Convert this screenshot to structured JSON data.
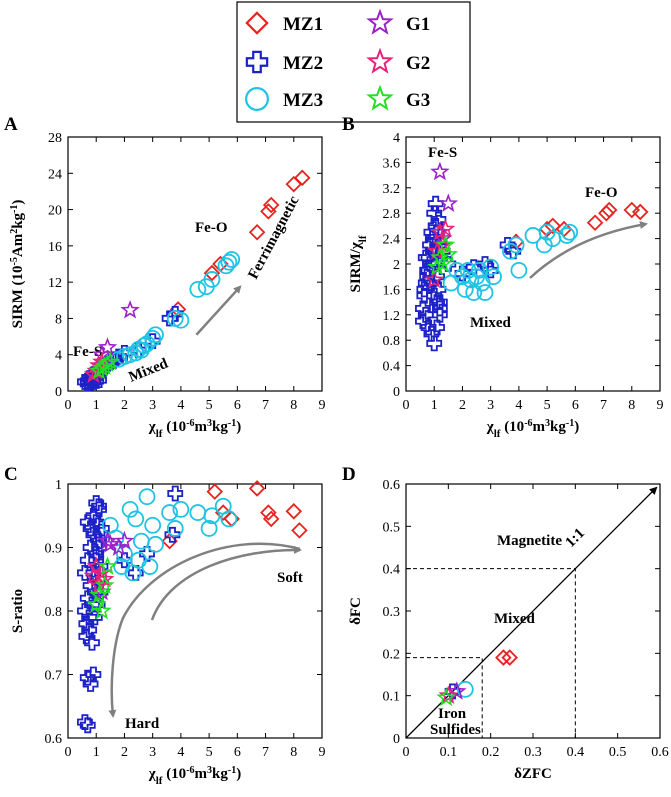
{
  "legend": [
    {
      "label": "MZ1",
      "marker": "diamond",
      "color": "#e8231f"
    },
    {
      "label": "MZ2",
      "marker": "cross",
      "color": "#1d22c8"
    },
    {
      "label": "MZ3",
      "marker": "circle",
      "color": "#1fc3e3"
    },
    {
      "label": "G1",
      "marker": "star",
      "color": "#9a22c8"
    },
    {
      "label": "G2",
      "marker": "star",
      "color": "#e8227a"
    },
    {
      "label": "G3",
      "marker": "star",
      "color": "#22e022"
    }
  ],
  "colors": {
    "MZ1": "#e8231f",
    "MZ2": "#1d22c8",
    "MZ3": "#1fc3e3",
    "G1": "#9a22c8",
    "G2": "#e8227a",
    "G3": "#22e022",
    "arrow": "#808080"
  },
  "chart_data": [
    {
      "panel": "A",
      "type": "scatter",
      "xlabel": "χlf (10-6m3kg-1)",
      "ylabel": "SIRM (10-5Am2kg-1)",
      "xlim": [
        0,
        9
      ],
      "ylim": [
        0,
        28
      ],
      "xticks": [
        "0",
        "1",
        "2",
        "3",
        "4",
        "5",
        "6",
        "7",
        "8",
        "9"
      ],
      "yticks": [
        "0",
        "4",
        "8",
        "12",
        "16",
        "20",
        "24",
        "28"
      ],
      "annotations": [
        "Fe-S",
        "Mixed",
        "Fe-O",
        "Ferrimagnetic"
      ],
      "series": [
        {
          "name": "MZ1",
          "x": [
            3.9,
            5.1,
            5.4,
            6.7,
            7.1,
            7.2,
            8.0,
            8.3
          ],
          "y": [
            9.0,
            13.0,
            14.0,
            17.5,
            19.8,
            20.5,
            22.8,
            23.5
          ]
        },
        {
          "name": "MZ2",
          "x": [
            0.6,
            0.7,
            0.8,
            0.9,
            0.95,
            1.0,
            1.05,
            1.1,
            1.15,
            0.7,
            0.8,
            0.9,
            1.0,
            1.1,
            0.75,
            0.85,
            0.95,
            1.05,
            1.2,
            1.3,
            1.4,
            1.5,
            1.6,
            1.7,
            1.8,
            2.0,
            2.5,
            3.0,
            3.6,
            3.8
          ],
          "y": [
            1.0,
            1.1,
            1.2,
            1.3,
            1.5,
            1.6,
            1.8,
            2.0,
            2.2,
            0.8,
            0.9,
            1.0,
            1.1,
            1.2,
            1.4,
            1.6,
            1.9,
            2.3,
            2.5,
            2.7,
            3.0,
            3.2,
            3.3,
            3.5,
            3.8,
            4.2,
            4.5,
            5.5,
            8.0,
            8.5
          ]
        },
        {
          "name": "MZ3",
          "x": [
            1.8,
            2.0,
            2.2,
            2.4,
            2.5,
            2.6,
            2.7,
            2.8,
            3.0,
            3.1,
            3.8,
            4.0,
            4.6,
            4.9,
            5.1,
            5.6,
            5.7,
            5.8
          ],
          "y": [
            3.5,
            3.8,
            4.0,
            4.2,
            4.6,
            4.5,
            5.0,
            5.2,
            5.8,
            6.2,
            8.0,
            7.8,
            11.2,
            11.5,
            12.3,
            13.8,
            14.2,
            14.5
          ]
        },
        {
          "name": "G1",
          "x": [
            1.2,
            1.4,
            2.2
          ],
          "y": [
            4.0,
            4.8,
            8.9
          ]
        },
        {
          "name": "G2",
          "x": [
            0.9,
            1.0,
            1.1,
            1.2
          ],
          "y": [
            1.8,
            2.2,
            2.8,
            3.2
          ]
        },
        {
          "name": "G3",
          "x": [
            1.1,
            1.2,
            1.3,
            1.4,
            1.5
          ],
          "y": [
            2.2,
            2.5,
            2.7,
            3.0,
            3.2
          ]
        }
      ]
    },
    {
      "panel": "B",
      "type": "scatter",
      "xlabel": "χlf (10-6m3kg-1)",
      "ylabel": "SIRM/χlf",
      "xlim": [
        0,
        9
      ],
      "ylim": [
        0,
        4
      ],
      "xticks": [
        "0",
        "1",
        "2",
        "3",
        "4",
        "5",
        "6",
        "7",
        "8",
        "9"
      ],
      "yticks": [
        "0",
        "0.4",
        "0.8",
        "1.2",
        "1.6",
        "2",
        "2.4",
        "2.8",
        "3.2",
        "3.6",
        "4"
      ],
      "annotations": [
        "Fe-S",
        "Fe-O",
        "Mixed"
      ],
      "series": [
        {
          "name": "MZ1",
          "x": [
            3.9,
            5.0,
            5.2,
            5.6,
            6.7,
            7.1,
            7.2,
            8.0,
            8.3
          ],
          "y": [
            2.35,
            2.55,
            2.6,
            2.55,
            2.65,
            2.8,
            2.85,
            2.85,
            2.82
          ]
        },
        {
          "name": "MZ2",
          "x": [
            0.6,
            0.65,
            0.7,
            0.75,
            0.8,
            0.85,
            0.9,
            0.95,
            1.0,
            1.05,
            1.1,
            1.15,
            1.2,
            0.6,
            0.7,
            0.8,
            0.9,
            1.0,
            1.1,
            1.2,
            0.65,
            0.75,
            0.85,
            0.95,
            1.05,
            1.15,
            0.7,
            0.8,
            0.9,
            1.0,
            1.1,
            1.2,
            1.0,
            1.05,
            1.1,
            1.15,
            1.2,
            1.3,
            1.5,
            2.0,
            2.4,
            2.8,
            3.0,
            3.6,
            3.8
          ],
          "y": [
            1.3,
            1.5,
            1.7,
            1.9,
            2.1,
            2.3,
            2.5,
            2.4,
            2.2,
            2.0,
            1.8,
            1.6,
            1.4,
            1.1,
            1.2,
            1.0,
            0.9,
            0.75,
            1.0,
            1.3,
            1.6,
            1.8,
            2.0,
            2.2,
            2.6,
            2.7,
            2.1,
            1.9,
            1.7,
            1.5,
            1.4,
            1.2,
            2.8,
            2.95,
            2.5,
            2.3,
            2.1,
            2.2,
            2.0,
            1.85,
            1.95,
            2.0,
            1.9,
            2.3,
            2.2
          ]
        },
        {
          "name": "MZ3",
          "x": [
            1.6,
            1.8,
            2.0,
            2.1,
            2.2,
            2.3,
            2.4,
            2.5,
            2.6,
            2.7,
            2.8,
            3.0,
            3.1,
            3.7,
            3.9,
            4.0,
            4.5,
            4.9,
            5.0,
            5.2,
            5.7,
            5.8
          ],
          "y": [
            1.7,
            1.9,
            1.8,
            1.6,
            1.9,
            1.75,
            1.55,
            1.8,
            1.9,
            1.7,
            1.55,
            1.95,
            1.8,
            2.2,
            2.3,
            1.9,
            2.45,
            2.3,
            2.5,
            2.4,
            2.45,
            2.5
          ]
        },
        {
          "name": "G1",
          "x": [
            1.2,
            1.3,
            1.5
          ],
          "y": [
            3.45,
            2.4,
            2.95
          ]
        },
        {
          "name": "G2",
          "x": [
            1.0,
            1.1,
            1.2,
            1.3,
            1.4
          ],
          "y": [
            1.75,
            2.2,
            2.5,
            2.3,
            2.55
          ]
        },
        {
          "name": "G3",
          "x": [
            1.1,
            1.2,
            1.3,
            1.4,
            1.5
          ],
          "y": [
            1.95,
            2.1,
            2.0,
            2.3,
            2.15
          ]
        }
      ]
    },
    {
      "panel": "C",
      "type": "scatter",
      "xlabel": "χlf (10-6m3kg-1)",
      "ylabel": "S-ratio",
      "xlim": [
        0,
        9
      ],
      "ylim": [
        0.6,
        1.0
      ],
      "xticks": [
        "0",
        "1",
        "2",
        "3",
        "4",
        "5",
        "6",
        "7",
        "8",
        "9"
      ],
      "yticks": [
        "0.6",
        "0.7",
        "0.8",
        "0.9",
        "1"
      ],
      "annotations": [
        "Soft",
        "Hard"
      ],
      "series": [
        {
          "name": "MZ1",
          "x": [
            3.6,
            5.2,
            5.5,
            5.8,
            6.7,
            7.1,
            7.2,
            8.0,
            8.2
          ],
          "y": [
            0.91,
            0.988,
            0.955,
            0.945,
            0.993,
            0.955,
            0.945,
            0.957,
            0.927
          ]
        },
        {
          "name": "MZ2",
          "x": [
            0.6,
            0.7,
            0.8,
            0.9,
            1.0,
            1.1,
            1.2,
            0.65,
            0.75,
            0.85,
            0.95,
            1.05,
            1.15,
            0.6,
            0.7,
            0.8,
            0.9,
            1.0,
            1.1,
            0.65,
            0.75,
            0.85,
            0.95,
            1.05,
            1.15,
            0.7,
            0.8,
            0.9,
            1.0,
            1.1,
            0.7,
            0.8,
            0.9,
            0.6,
            0.7,
            1.0,
            1.1,
            1.2,
            2.0,
            2.4,
            2.8,
            3.7,
            3.8
          ],
          "y": [
            0.8,
            0.82,
            0.84,
            0.86,
            0.88,
            0.9,
            0.92,
            0.78,
            0.79,
            0.81,
            0.83,
            0.85,
            0.87,
            0.86,
            0.88,
            0.9,
            0.92,
            0.94,
            0.96,
            0.76,
            0.77,
            0.75,
            0.79,
            0.81,
            0.83,
            0.94,
            0.93,
            0.95,
            0.97,
            0.965,
            0.695,
            0.685,
            0.7,
            0.625,
            0.62,
            0.89,
            0.91,
            0.93,
            0.88,
            0.86,
            0.89,
            0.92,
            0.985
          ]
        },
        {
          "name": "MZ3",
          "x": [
            1.5,
            1.7,
            1.9,
            2.0,
            2.2,
            2.3,
            2.4,
            2.5,
            2.6,
            2.8,
            2.9,
            3.0,
            3.1,
            3.6,
            3.8,
            4.0,
            4.6,
            5.0,
            5.1,
            5.5,
            5.7
          ],
          "y": [
            0.935,
            0.915,
            0.87,
            0.89,
            0.96,
            0.86,
            0.945,
            0.88,
            0.91,
            0.98,
            0.87,
            0.935,
            0.905,
            0.955,
            0.93,
            0.96,
            0.955,
            0.93,
            0.95,
            0.965,
            0.945
          ]
        },
        {
          "name": "G1",
          "x": [
            1.2,
            1.4,
            1.5,
            1.8,
            2.0
          ],
          "y": [
            0.83,
            0.91,
            0.905,
            0.9,
            0.91
          ]
        },
        {
          "name": "G2",
          "x": [
            0.9,
            1.0,
            1.1,
            1.2,
            1.3
          ],
          "y": [
            0.855,
            0.87,
            0.84,
            0.86,
            0.85
          ]
        },
        {
          "name": "G3",
          "x": [
            1.0,
            1.1,
            1.2,
            1.3,
            1.4
          ],
          "y": [
            0.81,
            0.825,
            0.8,
            0.84,
            0.87
          ]
        }
      ]
    },
    {
      "panel": "D",
      "type": "scatter",
      "xlabel": "δZFC",
      "ylabel": "δFC",
      "xlim": [
        0,
        0.6
      ],
      "ylim": [
        0,
        0.6
      ],
      "xticks": [
        "0",
        "0.1",
        "0.2",
        "0.3",
        "0.4",
        "0.5",
        "0.6"
      ],
      "yticks": [
        "0",
        "0.1",
        "0.2",
        "0.3",
        "0.4",
        "0.5",
        "0.6"
      ],
      "annotations": [
        "Magnetite",
        "1:1",
        "Mixed",
        "Iron",
        "Sulfides"
      ],
      "reference_lines": {
        "one_to_one": [
          [
            0,
            0
          ],
          [
            0.6,
            0.6
          ]
        ],
        "magnetite_bound": 0.4,
        "iron_sulfide_bound": [
          0.18,
          0.19
        ]
      },
      "series": [
        {
          "name": "MZ1",
          "x": [
            0.23,
            0.245
          ],
          "y": [
            0.19,
            0.19
          ]
        },
        {
          "name": "MZ2",
          "x": [
            0.11
          ],
          "y": [
            0.11
          ]
        },
        {
          "name": "MZ3",
          "x": [
            0.14
          ],
          "y": [
            0.115
          ]
        },
        {
          "name": "G1",
          "x": [
            0.12
          ],
          "y": [
            0.11
          ]
        },
        {
          "name": "G2",
          "x": [
            0.1
          ],
          "y": [
            0.1
          ]
        },
        {
          "name": "G3",
          "x": [
            0.095
          ],
          "y": [
            0.095
          ]
        }
      ]
    }
  ]
}
